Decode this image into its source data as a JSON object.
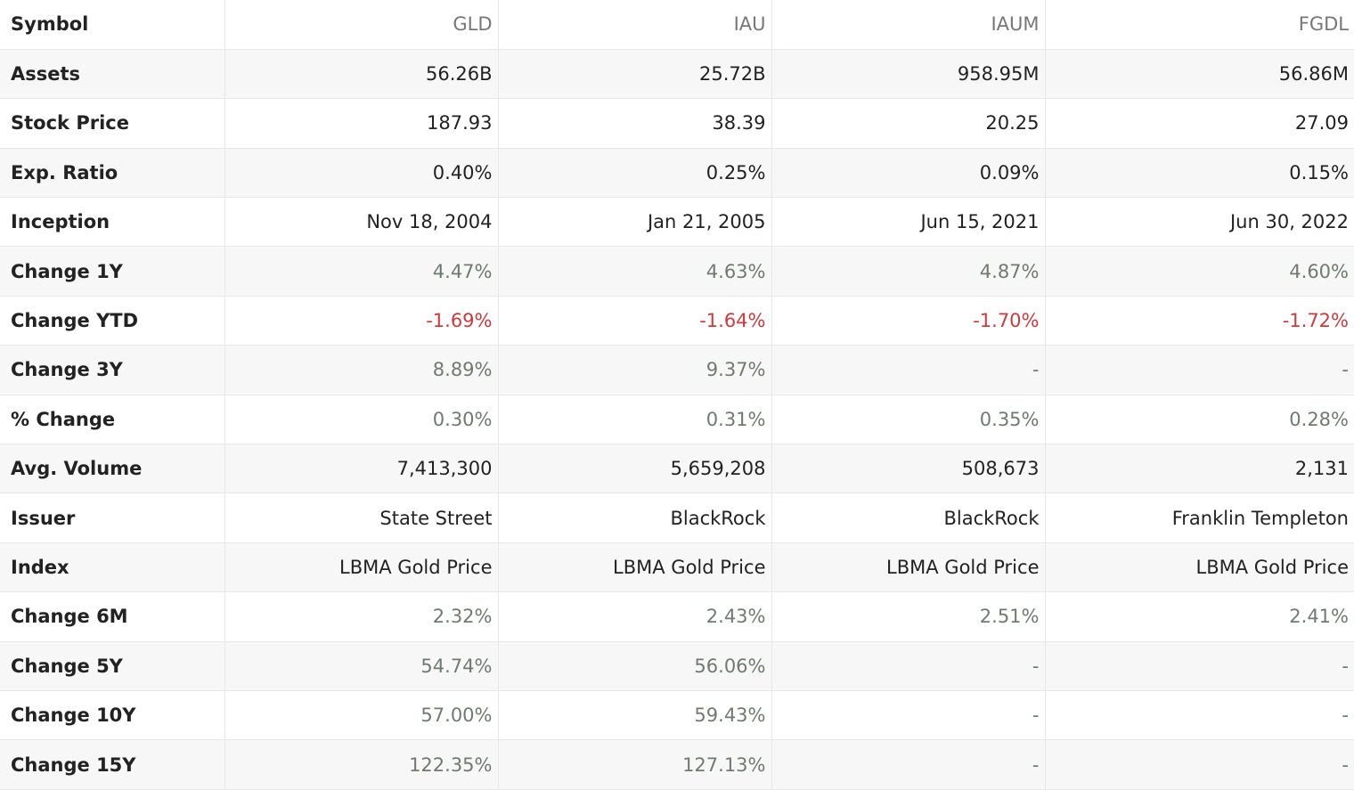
{
  "table": {
    "rows": [
      {
        "label": "Symbol",
        "style": "sym",
        "values": [
          "GLD",
          "IAU",
          "IAUM",
          "FGDL"
        ]
      },
      {
        "label": "Assets",
        "style": "plain",
        "values": [
          "56.26B",
          "25.72B",
          "958.95M",
          "56.86M"
        ]
      },
      {
        "label": "Stock Price",
        "style": "plain",
        "values": [
          "187.93",
          "38.39",
          "20.25",
          "27.09"
        ]
      },
      {
        "label": "Exp. Ratio",
        "style": "plain",
        "values": [
          "0.40%",
          "0.25%",
          "0.09%",
          "0.15%"
        ]
      },
      {
        "label": "Inception",
        "style": "plain",
        "values": [
          "Nov 18, 2004",
          "Jan 21, 2005",
          "Jun 15, 2021",
          "Jun 30, 2022"
        ]
      },
      {
        "label": "Change 1Y",
        "style": "muted",
        "values": [
          "4.47%",
          "4.63%",
          "4.87%",
          "4.60%"
        ]
      },
      {
        "label": "Change YTD",
        "style": "neg",
        "values": [
          "-1.69%",
          "-1.64%",
          "-1.70%",
          "-1.72%"
        ]
      },
      {
        "label": "Change 3Y",
        "style": "muted",
        "values": [
          "8.89%",
          "9.37%",
          "-",
          "-"
        ]
      },
      {
        "label": "% Change",
        "style": "muted",
        "values": [
          "0.30%",
          "0.31%",
          "0.35%",
          "0.28%"
        ]
      },
      {
        "label": "Avg. Volume",
        "style": "plain",
        "values": [
          "7,413,300",
          "5,659,208",
          "508,673",
          "2,131"
        ]
      },
      {
        "label": "Issuer",
        "style": "plain",
        "values": [
          "State Street",
          "BlackRock",
          "BlackRock",
          "Franklin Templeton"
        ]
      },
      {
        "label": "Index",
        "style": "plain",
        "values": [
          "LBMA Gold Price",
          "LBMA Gold Price",
          "LBMA Gold Price",
          "LBMA Gold Price"
        ]
      },
      {
        "label": "Change 6M",
        "style": "muted",
        "values": [
          "2.32%",
          "2.43%",
          "2.51%",
          "2.41%"
        ]
      },
      {
        "label": "Change 5Y",
        "style": "muted",
        "values": [
          "54.74%",
          "56.06%",
          "-",
          "-"
        ]
      },
      {
        "label": "Change 10Y",
        "style": "muted",
        "values": [
          "57.00%",
          "59.43%",
          "-",
          "-"
        ]
      },
      {
        "label": "Change 15Y",
        "style": "muted",
        "values": [
          "122.35%",
          "127.13%",
          "-",
          "-"
        ]
      }
    ]
  },
  "colors": {
    "negative": "#d0393c",
    "muted_positive": "#6f7a72",
    "header_symbol": "#777777",
    "stripe": "#f7f7f7"
  }
}
